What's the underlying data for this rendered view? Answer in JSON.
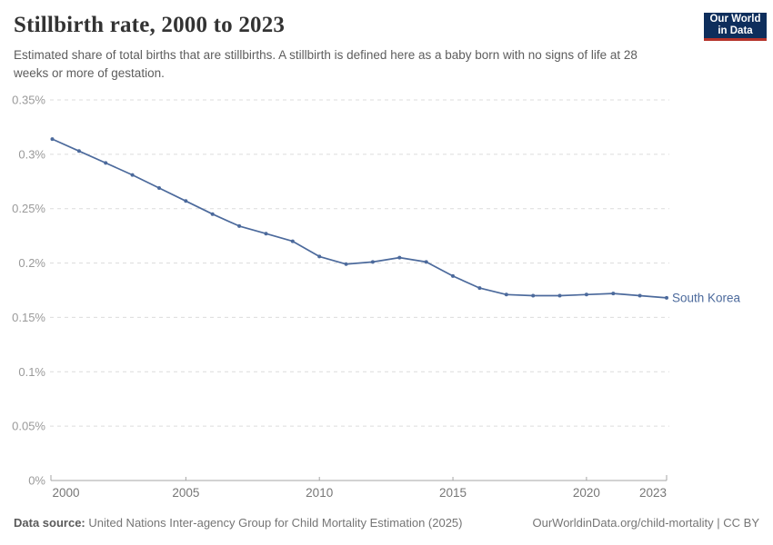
{
  "header": {
    "title": "Stillbirth rate, 2000 to 2023",
    "subtitle": "Estimated share of total births that are stillbirths. A stillbirth is defined here as a baby born with no signs of life at 28 weeks or more of gestation.",
    "logo": {
      "line1": "Our World",
      "line2": "in Data"
    }
  },
  "footer": {
    "source_label": "Data source:",
    "source_text": " United Nations Inter-agency Group for Child Mortality Estimation (2025)",
    "license_text": "OurWorldinData.org/child-mortality | CC BY"
  },
  "colors": {
    "series_line": "#4c6a9c",
    "gridline": "#dcdcdc",
    "axis_line": "#a5a5a5",
    "y_tick_label": "#9a9a9a",
    "x_tick_label": "#777777",
    "logo_navy": "#0e2e5c",
    "logo_red": "#b5322a"
  },
  "chart_data": {
    "type": "line",
    "title": "Stillbirth rate, 2000 to 2023",
    "unit": "%",
    "xlim": [
      2000,
      2023
    ],
    "ylim": [
      0,
      0.35
    ],
    "grid": "dashed-horizontal",
    "legend_position": "end-of-line-label",
    "x": [
      2000,
      2001,
      2002,
      2003,
      2004,
      2005,
      2006,
      2007,
      2008,
      2009,
      2010,
      2011,
      2012,
      2013,
      2014,
      2015,
      2016,
      2017,
      2018,
      2019,
      2020,
      2021,
      2022,
      2023
    ],
    "series": [
      {
        "name": "South Korea",
        "color": "#4c6a9c",
        "values": [
          0.314,
          0.303,
          0.292,
          0.281,
          0.269,
          0.257,
          0.245,
          0.234,
          0.227,
          0.22,
          0.206,
          0.199,
          0.201,
          0.205,
          0.201,
          0.188,
          0.177,
          0.171,
          0.17,
          0.17,
          0.171,
          0.172,
          0.17,
          0.168
        ]
      }
    ],
    "x_ticks": [
      {
        "value": 2000,
        "label": "2000",
        "anchor": "start"
      },
      {
        "value": 2005,
        "label": "2005",
        "anchor": "middle"
      },
      {
        "value": 2010,
        "label": "2010",
        "anchor": "middle"
      },
      {
        "value": 2015,
        "label": "2015",
        "anchor": "middle"
      },
      {
        "value": 2020,
        "label": "2020",
        "anchor": "middle"
      },
      {
        "value": 2023,
        "label": "2023",
        "anchor": "end"
      }
    ],
    "y_ticks": [
      {
        "value": 0,
        "label": "0%"
      },
      {
        "value": 0.05,
        "label": "0.05%"
      },
      {
        "value": 0.1,
        "label": "0.1%"
      },
      {
        "value": 0.15,
        "label": "0.15%"
      },
      {
        "value": 0.2,
        "label": "0.2%"
      },
      {
        "value": 0.25,
        "label": "0.25%"
      },
      {
        "value": 0.3,
        "label": "0.3%"
      },
      {
        "value": 0.35,
        "label": "0.35%"
      }
    ]
  }
}
